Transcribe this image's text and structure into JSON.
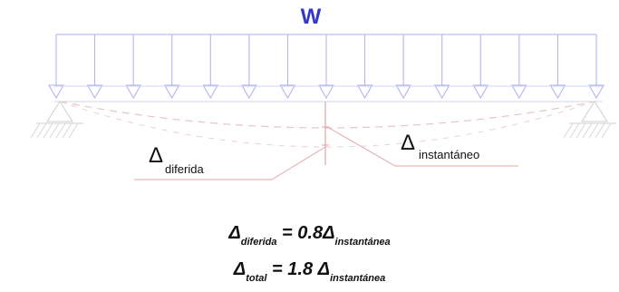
{
  "load": {
    "label": "W"
  },
  "labels": {
    "delta_diferida": {
      "symbol": "Δ",
      "subscript": "diferida"
    },
    "delta_instantaneo": {
      "symbol": "Δ",
      "subscript": "instantáneo"
    }
  },
  "equations": {
    "eq1": {
      "lhs_symbol": "Δ",
      "lhs_sub": "diferida",
      "middle": " = 0.8Δ",
      "rhs_sub": "instantánea"
    },
    "eq2": {
      "lhs_symbol": "Δ",
      "lhs_sub": "total",
      "middle": " = 1.8 Δ",
      "rhs_sub": "instantánea"
    }
  },
  "colors": {
    "load": "#3338c8",
    "load_arrows": "#aab0f0",
    "deflection_dashed": "#e8c4c4",
    "deflection_lines": "#e0a6a6",
    "support": "#cfcfcf"
  }
}
